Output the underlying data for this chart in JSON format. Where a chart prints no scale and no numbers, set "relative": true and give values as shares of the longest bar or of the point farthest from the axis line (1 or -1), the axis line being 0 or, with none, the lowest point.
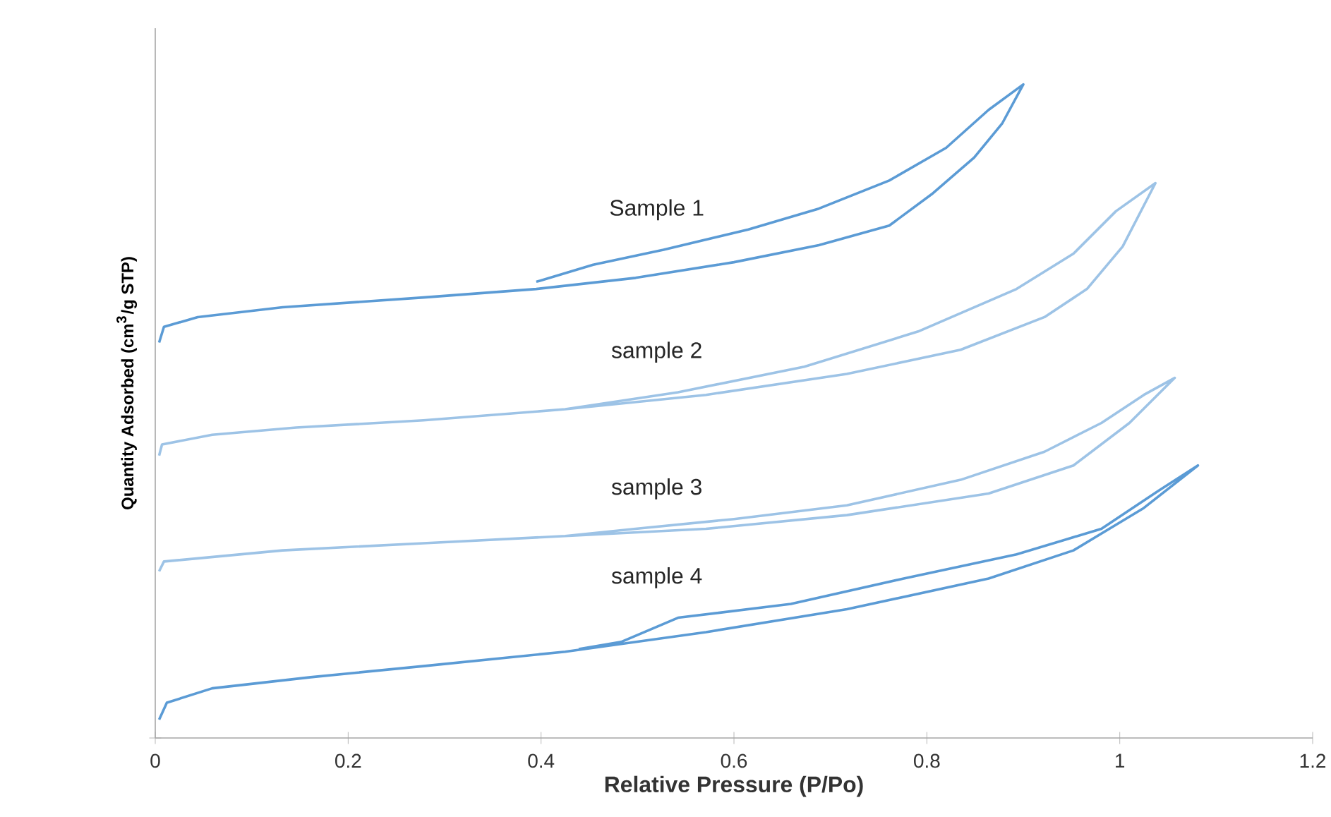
{
  "chart_data": {
    "type": "line",
    "relative": true,
    "xlabel": "Relative Pressure (P/Po)",
    "ylabel": "Quantity Adsorbed (cm$^{3}$/g STP)",
    "xlim": [
      0,
      1.2
    ],
    "xticks": [
      0,
      0.2,
      0.4,
      0.6,
      0.8,
      1,
      1.2
    ],
    "tick_labels": "x",
    "legend": false,
    "grid": false,
    "marker": "none",
    "line_style": "solid",
    "series": [
      {
        "name": "Sample 1",
        "color": "#5b9bd5",
        "x": [
          0.004,
          0.009,
          0.044,
          0.132,
          0.278,
          0.395,
          0.498,
          0.6,
          0.688,
          0.761,
          0.805,
          0.849,
          0.878,
          0.9,
          0.864,
          0.82,
          0.761,
          0.688,
          0.615,
          0.527,
          0.454,
          0.395
        ],
        "values": [
          0.605,
          0.629,
          0.644,
          0.659,
          0.674,
          0.687,
          0.704,
          0.728,
          0.754,
          0.784,
          0.832,
          0.888,
          0.94,
          1.0,
          0.961,
          0.903,
          0.853,
          0.81,
          0.778,
          0.747,
          0.724,
          0.698
        ]
      },
      {
        "name": "sample 2",
        "color": "#9dc3e6",
        "x": [
          0.004,
          0.007,
          0.059,
          0.146,
          0.278,
          0.425,
          0.571,
          0.717,
          0.835,
          0.922,
          0.966,
          1.003,
          1.037,
          0.996,
          0.952,
          0.893,
          0.791,
          0.673,
          0.542,
          0.425
        ],
        "values": [
          0.432,
          0.449,
          0.464,
          0.475,
          0.486,
          0.503,
          0.525,
          0.557,
          0.594,
          0.644,
          0.687,
          0.752,
          0.849,
          0.806,
          0.741,
          0.687,
          0.622,
          0.568,
          0.529,
          0.503
        ]
      },
      {
        "name": "sample 3",
        "color": "#9dc3e6",
        "x": [
          0.004,
          0.009,
          0.132,
          0.278,
          0.425,
          0.571,
          0.717,
          0.864,
          0.952,
          1.01,
          1.057,
          1.025,
          0.981,
          0.922,
          0.835,
          0.717,
          0.6,
          0.498,
          0.425
        ],
        "values": [
          0.255,
          0.27,
          0.287,
          0.298,
          0.309,
          0.32,
          0.341,
          0.374,
          0.417,
          0.482,
          0.551,
          0.525,
          0.482,
          0.438,
          0.395,
          0.356,
          0.335,
          0.32,
          0.309
        ]
      },
      {
        "name": "sample 4",
        "color": "#5b9bd5",
        "x": [
          0.004,
          0.012,
          0.059,
          0.161,
          0.278,
          0.425,
          0.571,
          0.717,
          0.864,
          0.952,
          1.025,
          1.081,
          1.04,
          0.981,
          0.893,
          0.776,
          0.659,
          0.542,
          0.483,
          0.439
        ],
        "values": [
          0.028,
          0.054,
          0.076,
          0.093,
          0.11,
          0.132,
          0.162,
          0.197,
          0.244,
          0.287,
          0.352,
          0.417,
          0.378,
          0.32,
          0.281,
          0.244,
          0.205,
          0.184,
          0.147,
          0.136
        ]
      }
    ]
  }
}
